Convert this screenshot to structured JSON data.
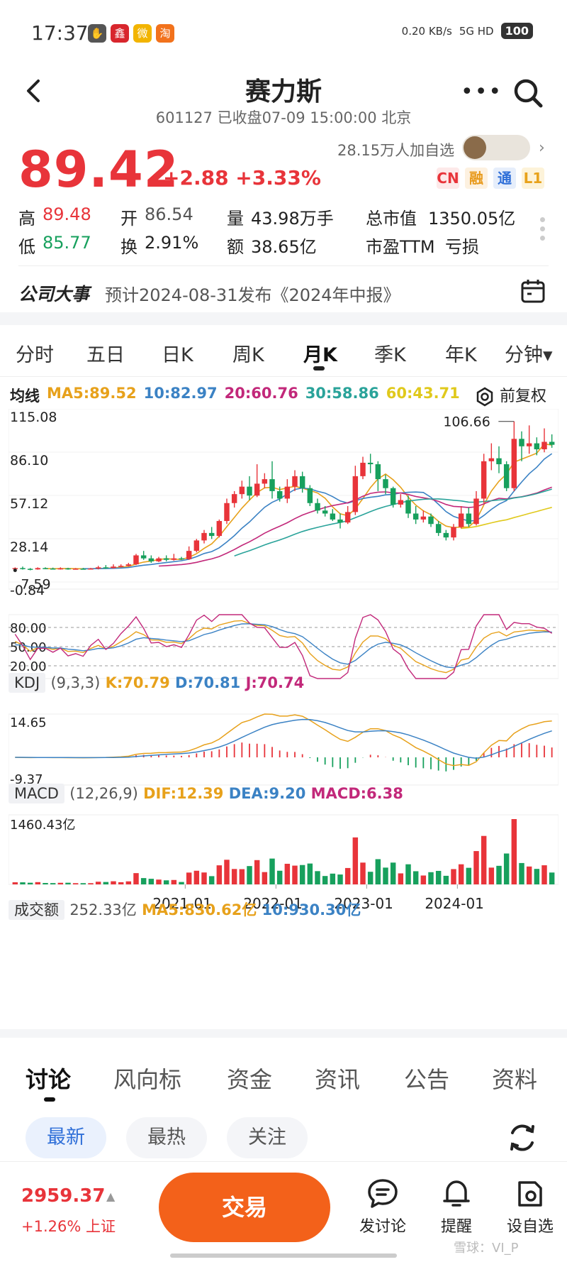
{
  "status_bar": {
    "time": "17:37",
    "network_speed": "0.20 KB/s",
    "network": "5G HD",
    "battery": "100"
  },
  "header": {
    "title": "赛力斯",
    "subtitle": "601127 已收盘07-09 15:00:00 北京"
  },
  "quote": {
    "price": "89.42",
    "change": "+2.88 +3.33%",
    "followers": "28.15万人加自选",
    "badges": [
      "CN",
      "融",
      "通",
      "L1"
    ],
    "high_label": "高",
    "high": "89.48",
    "open_label": "开",
    "open": "86.54",
    "volume_label": "量",
    "volume": "43.98万手",
    "mktcap_label": "总市值",
    "mktcap": "1350.05亿",
    "low_label": "低",
    "low": "85.77",
    "turnover_label": "换",
    "turnover": "2.91%",
    "amount_label": "额",
    "amount": "38.65亿",
    "pe_label": "市盈TTM",
    "pe": "亏损"
  },
  "event": {
    "title": "公司大事",
    "text": "预计2024-08-31发布《2024年中报》"
  },
  "kline_tabs": [
    "分时",
    "五日",
    "日K",
    "周K",
    "月K",
    "季K",
    "年K",
    "分钟▾"
  ],
  "active_tab": "月K",
  "ma": {
    "label": "均线",
    "ma5": "MA5:89.52",
    "ma10": "10:82.97",
    "ma20": "20:60.76",
    "ma30": "30:58.86",
    "ma60": "60:43.71",
    "fuquan": "前复权"
  },
  "colors": {
    "up": "#e8343a",
    "down": "#17a05d",
    "ma5": "#e7a11b",
    "ma10": "#3b82c4",
    "ma20": "#c2287a",
    "ma30": "#2aa39a",
    "ma60": "#e0c91c",
    "accent": "#f3611a"
  },
  "chart_data": {
    "type": "candlestick",
    "period": "monthly",
    "y_ticks": [
      "115.08",
      "86.10",
      "57.12",
      "28.14",
      "-0.84"
    ],
    "annotations": {
      "max": "106.66",
      "min": "7.59"
    },
    "x_ticks": [
      "2021-01",
      "2022-01",
      "2023-01",
      "2024-01"
    ],
    "candles": [
      [
        8,
        8.5,
        7,
        9
      ],
      [
        8.5,
        8,
        7.5,
        9.5
      ],
      [
        8,
        7.6,
        7,
        8.5
      ],
      [
        7.6,
        8.5,
        7.4,
        9
      ],
      [
        8.5,
        8.2,
        7.8,
        9
      ],
      [
        8.2,
        8,
        7.6,
        8.8
      ],
      [
        8,
        8.3,
        7.5,
        9
      ],
      [
        8.3,
        7.8,
        7.4,
        8.7
      ],
      [
        7.8,
        8.1,
        7.6,
        8.5
      ],
      [
        8.1,
        7.9,
        7.5,
        8.6
      ],
      [
        7.9,
        8.2,
        7.7,
        8.6
      ],
      [
        8.2,
        9,
        7.59,
        10
      ],
      [
        9,
        8.5,
        8,
        10.5
      ],
      [
        8.5,
        9.5,
        8.2,
        11
      ],
      [
        9.5,
        10,
        9,
        11
      ],
      [
        10,
        11,
        9.5,
        12
      ],
      [
        11,
        17,
        10.5,
        18
      ],
      [
        17,
        15,
        14,
        20
      ],
      [
        15,
        13,
        12,
        17
      ],
      [
        13,
        15,
        12.5,
        16
      ],
      [
        15,
        14,
        13,
        17
      ],
      [
        14,
        15,
        13.5,
        18
      ],
      [
        15,
        14.5,
        14,
        16
      ],
      [
        14.5,
        20,
        14,
        23
      ],
      [
        20,
        27,
        19,
        28
      ],
      [
        27,
        32,
        25,
        34
      ],
      [
        32,
        30,
        28,
        36
      ],
      [
        30,
        40,
        29,
        41
      ],
      [
        40,
        52,
        38,
        55
      ],
      [
        52,
        58,
        49,
        60
      ],
      [
        58,
        63,
        55,
        67
      ],
      [
        63,
        57,
        54,
        70
      ],
      [
        57,
        65,
        56,
        78
      ],
      [
        65,
        68,
        62,
        72
      ],
      [
        68,
        60,
        55,
        80
      ],
      [
        60,
        55,
        53,
        63
      ],
      [
        55,
        63,
        52,
        68
      ],
      [
        63,
        70,
        60,
        74
      ],
      [
        70,
        62,
        59,
        73
      ],
      [
        62,
        52,
        50,
        64
      ],
      [
        52,
        47,
        45,
        55
      ],
      [
        47,
        45,
        43,
        50
      ],
      [
        45,
        41,
        40,
        48
      ],
      [
        41,
        39,
        35,
        45
      ],
      [
        39,
        46,
        38,
        50
      ],
      [
        46,
        70,
        44,
        77
      ],
      [
        70,
        79,
        68,
        83
      ],
      [
        79,
        78,
        72,
        85
      ],
      [
        78,
        68,
        60,
        80
      ],
      [
        68,
        62,
        58,
        71
      ],
      [
        62,
        51,
        49,
        63
      ],
      [
        51,
        54,
        49,
        58
      ],
      [
        54,
        45,
        42,
        57
      ],
      [
        45,
        41,
        38,
        50
      ],
      [
        41,
        43,
        39,
        47
      ],
      [
        43,
        38,
        36,
        45
      ],
      [
        38,
        32,
        30,
        40
      ],
      [
        32,
        29,
        27,
        34
      ],
      [
        29,
        36,
        27,
        38
      ],
      [
        36,
        45,
        35,
        50
      ],
      [
        45,
        38,
        36,
        49
      ],
      [
        38,
        55,
        37,
        60
      ],
      [
        55,
        80,
        52,
        85
      ],
      [
        80,
        82,
        74,
        92
      ],
      [
        82,
        78,
        72,
        90
      ],
      [
        78,
        62,
        60,
        80
      ],
      [
        62,
        95,
        60,
        106.66
      ],
      [
        95,
        90,
        80,
        100
      ],
      [
        90,
        92,
        85,
        104
      ],
      [
        92,
        88,
        84,
        96
      ],
      [
        88,
        93,
        86,
        102
      ],
      [
        93,
        91,
        89,
        98
      ]
    ],
    "kdj": {
      "label": "KDJ",
      "params": "(9,3,3)",
      "K": "K:70.79",
      "D": "D:70.81",
      "J": "J:70.74",
      "levels": [
        "80.00",
        "50.00",
        "20.00"
      ]
    },
    "macd": {
      "label": "MACD",
      "params": "(12,26,9)",
      "DIF": "DIF:12.39",
      "DEA": "DEA:9.20",
      "MACD": "MACD:6.38",
      "top": "14.65",
      "bottom": "-9.37"
    },
    "volume": {
      "label": "成交额",
      "value": "252.33亿",
      "ma5": "MA5:830.62亿",
      "ma10": "10:930.30亿",
      "max": "1460.43亿"
    }
  },
  "bottom_tabs": [
    "讨论",
    "风向标",
    "资金",
    "资讯",
    "公告",
    "资料"
  ],
  "sort_pills": [
    "最新",
    "最热",
    "关注"
  ],
  "index_bar": {
    "value": "2959.37",
    "change": "+1.26% 上证"
  },
  "trade_button": "交易",
  "nav": {
    "discuss": "发讨论",
    "remind": "提醒",
    "watchlist": "设自选"
  },
  "watermark": "雪球：VI_P"
}
